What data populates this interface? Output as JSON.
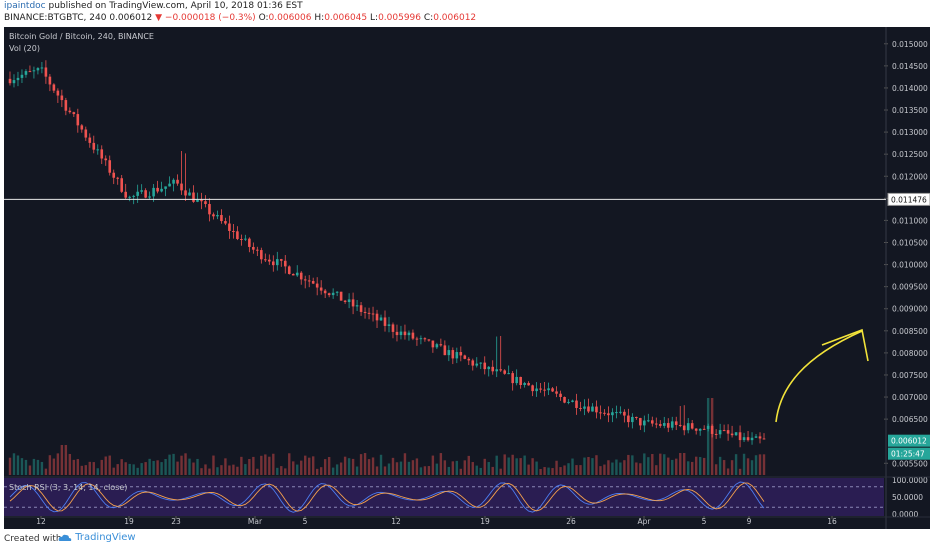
{
  "header": {
    "author": "ipaintdoc",
    "published": "published on TradingView.com, April 10, 2018 01:36 EST",
    "symbol": "BINANCE:BTGBTC, 240",
    "last": "0.006012",
    "change": "▼ −0.000018 (−0.3%)",
    "o_label": "O:",
    "o_val": "0.006006",
    "h_label": "H:",
    "h_val": "0.006045",
    "l_label": "L:",
    "l_val": "0.005996",
    "c_label": "C:",
    "c_val": "0.006012"
  },
  "footer": {
    "created": "Created with",
    "brand": "TradingView"
  },
  "colors": {
    "up": "#26a69a",
    "down": "#ef5350",
    "bg": "#131722",
    "panel": "#2a1d52",
    "arrow": "#f2e33a",
    "k_line": "#4d7cf0",
    "d_line": "#f5a14d"
  },
  "chart_data": [
    {
      "type": "candlestick",
      "title": "Bitcoin Gold / Bitcoin, 240, BINANCE",
      "volume_label": "Vol (20)",
      "x_tick_labels": [
        "12",
        "19",
        "23",
        "Mar",
        "5",
        "12",
        "19",
        "26",
        "Apr",
        "5",
        "9",
        "16"
      ],
      "y_tick_labels": [
        "0.015000",
        "0.014500",
        "0.014000",
        "0.013500",
        "0.013000",
        "0.012500",
        "0.012000",
        "0.011500",
        "0.011000",
        "0.010500",
        "0.010000",
        "0.009500",
        "0.009000",
        "0.008500",
        "0.008000",
        "0.007500",
        "0.007000",
        "0.006500",
        "0.005500"
      ],
      "ylim": [
        0.00528,
        0.01538
      ],
      "horizontal_line": {
        "value": 0.011476,
        "label": "0.011476"
      },
      "last_price_label": "0.006012",
      "countdown_label": "01:25:47",
      "close_path": [
        [
          "12",
          0.0144
        ],
        [
          "19",
          0.0115
        ],
        [
          "23",
          0.01185
        ],
        [
          "Mar",
          0.0103
        ],
        [
          "5",
          0.0097
        ],
        [
          "12",
          0.0085
        ],
        [
          "19",
          0.00765
        ],
        [
          "26",
          0.0069
        ],
        [
          "Apr",
          0.0064
        ],
        [
          "5",
          0.0063
        ],
        [
          "9",
          0.00601
        ]
      ],
      "volume_spikes": [
        [
          "5",
          "high"
        ],
        [
          "9",
          "moderate"
        ]
      ]
    },
    {
      "type": "line",
      "title": "Stoch RSI (3, 3, 14, 14, close)",
      "y_tick_labels": [
        "100.0000",
        "50.0000",
        "0.0000"
      ],
      "ylim": [
        0,
        100
      ],
      "bands": [
        20,
        80
      ]
    }
  ]
}
